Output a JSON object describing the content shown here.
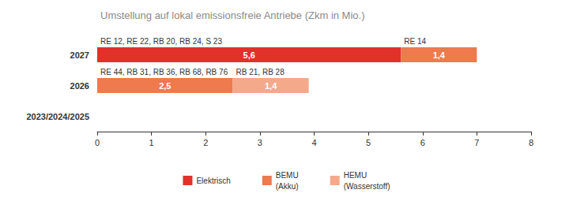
{
  "chart_data": {
    "type": "bar",
    "orientation": "horizontal",
    "stacked": true,
    "title": "Umstellung auf lokal emissionsfreie Antriebe (Zkm in Mio.)",
    "categories": [
      "2027",
      "2026",
      "2023/2024/2025"
    ],
    "series": [
      {
        "name": "Elektrisch",
        "color": "#e2312a",
        "values": [
          5.6,
          null,
          null
        ],
        "value_labels": [
          "5,6",
          null,
          null
        ],
        "annotations": [
          "RE 12, RE 22, RB 20, RB 24, S 23",
          null,
          null
        ]
      },
      {
        "name": "BEMU\n(Akku)",
        "color": "#ee7a4e",
        "values": [
          1.4,
          2.5,
          null
        ],
        "value_labels": [
          "1,4",
          "2,5",
          null
        ],
        "annotations": [
          "RE 14",
          "RE 44, RB 31, RB 36, RB 68, RB 76",
          null
        ]
      },
      {
        "name": "HEMU\n(Wasserstoff)",
        "color": "#f4a98a",
        "values": [
          null,
          1.4,
          null
        ],
        "value_labels": [
          null,
          "1,4",
          null
        ],
        "annotations": [
          null,
          "RB 21, RB 28",
          null
        ]
      }
    ],
    "xlim": [
      0,
      8
    ],
    "xticks": [
      0,
      1,
      2,
      3,
      4,
      5,
      6,
      7,
      8
    ],
    "grid": false,
    "data_labels": true,
    "legend": "bottom"
  }
}
